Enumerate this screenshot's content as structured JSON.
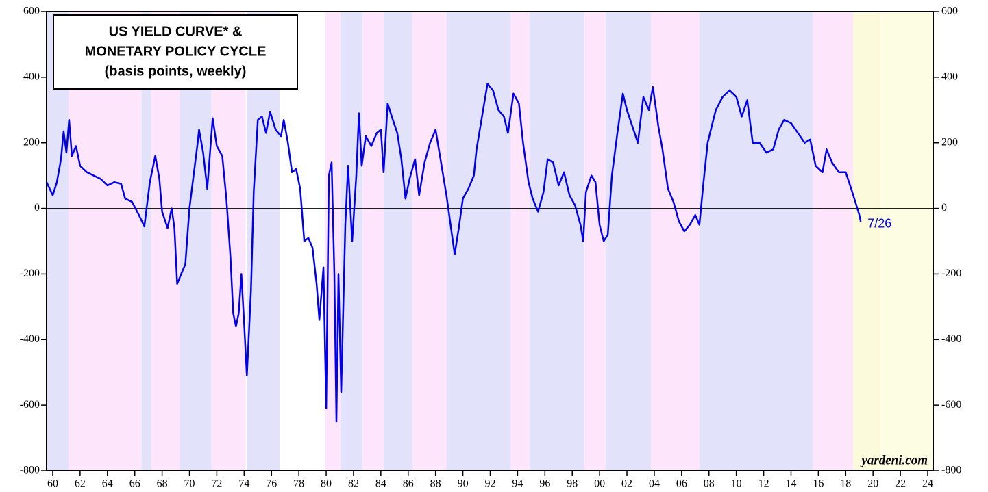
{
  "chart_data": {
    "type": "line",
    "title": [
      "US YIELD CURVE* &",
      "MONETARY POLICY CYCLE",
      "(basis points, weekly)"
    ],
    "annotation": "7/26",
    "source": "yardeni.com",
    "xlim": [
      1959.55,
      2024.4
    ],
    "ylim": [
      -800,
      600
    ],
    "yticks": [
      -800,
      -600,
      -400,
      -200,
      0,
      200,
      400,
      600
    ],
    "xticks": [
      {
        "value": 1960,
        "label": "60"
      },
      {
        "value": 1962,
        "label": "62"
      },
      {
        "value": 1964,
        "label": "64"
      },
      {
        "value": 1966,
        "label": "66"
      },
      {
        "value": 1968,
        "label": "68"
      },
      {
        "value": 1970,
        "label": "70"
      },
      {
        "value": 1972,
        "label": "72"
      },
      {
        "value": 1974,
        "label": "74"
      },
      {
        "value": 1976,
        "label": "76"
      },
      {
        "value": 1978,
        "label": "78"
      },
      {
        "value": 1980,
        "label": "80"
      },
      {
        "value": 1982,
        "label": "82"
      },
      {
        "value": 1984,
        "label": "84"
      },
      {
        "value": 1986,
        "label": "86"
      },
      {
        "value": 1988,
        "label": "88"
      },
      {
        "value": 1990,
        "label": "90"
      },
      {
        "value": 1992,
        "label": "92"
      },
      {
        "value": 1994,
        "label": "94"
      },
      {
        "value": 1996,
        "label": "96"
      },
      {
        "value": 1998,
        "label": "98"
      },
      {
        "value": 2000,
        "label": "00"
      },
      {
        "value": 2002,
        "label": "02"
      },
      {
        "value": 2004,
        "label": "04"
      },
      {
        "value": 2006,
        "label": "06"
      },
      {
        "value": 2008,
        "label": "08"
      },
      {
        "value": 2010,
        "label": "10"
      },
      {
        "value": 2012,
        "label": "12"
      },
      {
        "value": 2014,
        "label": "14"
      },
      {
        "value": 2016,
        "label": "16"
      },
      {
        "value": 2018,
        "label": "18"
      },
      {
        "value": 2020,
        "label": "20"
      },
      {
        "value": 2022,
        "label": "22"
      },
      {
        "value": 2024,
        "label": "24"
      }
    ],
    "bands": [
      {
        "start": 1959.55,
        "end": 1961.15,
        "color": "#e2e2fb"
      },
      {
        "start": 1961.15,
        "end": 1966.5,
        "color": "#fde6fb"
      },
      {
        "start": 1966.5,
        "end": 1967.2,
        "color": "#e2e2fb"
      },
      {
        "start": 1967.2,
        "end": 1969.3,
        "color": "#fde6fb"
      },
      {
        "start": 1969.3,
        "end": 1971.6,
        "color": "#e2e2fb"
      },
      {
        "start": 1971.6,
        "end": 1974.1,
        "color": "#fde6fb"
      },
      {
        "start": 1974.2,
        "end": 1976.6,
        "color": "#e2e2fb"
      },
      {
        "start": 1979.9,
        "end": 1981.05,
        "color": "#fde6fb"
      },
      {
        "start": 1981.05,
        "end": 1982.65,
        "color": "#e2e2fb"
      },
      {
        "start": 1982.65,
        "end": 1984.2,
        "color": "#fde6fb"
      },
      {
        "start": 1984.2,
        "end": 1986.3,
        "color": "#e2e2fb"
      },
      {
        "start": 1986.3,
        "end": 1988.8,
        "color": "#fde6fb"
      },
      {
        "start": 1988.8,
        "end": 1993.5,
        "color": "#e2e2fb"
      },
      {
        "start": 1993.5,
        "end": 1994.9,
        "color": "#fde6fb"
      },
      {
        "start": 1994.9,
        "end": 1998.9,
        "color": "#e2e2fb"
      },
      {
        "start": 1998.9,
        "end": 2000.45,
        "color": "#fde6fb"
      },
      {
        "start": 2000.45,
        "end": 2003.75,
        "color": "#e2e2fb"
      },
      {
        "start": 2003.75,
        "end": 2007.3,
        "color": "#fde6fb"
      },
      {
        "start": 2007.3,
        "end": 2015.6,
        "color": "#e2e2fb"
      },
      {
        "start": 2015.6,
        "end": 2018.55,
        "color": "#fde6fb"
      },
      {
        "start": 2018.55,
        "end": 2020.55,
        "color": "#fbfbdc"
      },
      {
        "start": 2020.55,
        "end": 2024.4,
        "color": "#fdfde3"
      }
    ],
    "x": [
      1959.55,
      1960.0,
      1960.3,
      1960.6,
      1960.8,
      1961.0,
      1961.2,
      1961.4,
      1961.7,
      1962.0,
      1962.5,
      1963,
      1963.5,
      1964,
      1964.5,
      1965,
      1965.3,
      1965.8,
      1966.3,
      1966.7,
      1967.1,
      1967.5,
      1967.8,
      1968.0,
      1968.4,
      1968.7,
      1968.9,
      1969.1,
      1969.4,
      1969.7,
      1970.0,
      1970.3,
      1970.6,
      1970.7,
      1971.0,
      1971.3,
      1971.7,
      1972.0,
      1972.4,
      1972.7,
      1973.0,
      1973.2,
      1973.4,
      1973.6,
      1973.8,
      1974.0,
      1974.2,
      1974.5,
      1974.7,
      1975.0,
      1975.3,
      1975.6,
      1975.9,
      1976.3,
      1976.7,
      1976.9,
      1977.2,
      1977.5,
      1977.8,
      1978.1,
      1978.4,
      1978.7,
      1979.0,
      1979.3,
      1979.5,
      1979.8,
      1980.0,
      1980.2,
      1980.4,
      1980.6,
      1980.75,
      1980.9,
      1981.1,
      1981.4,
      1981.6,
      1981.9,
      1982.2,
      1982.4,
      1982.6,
      1982.9,
      1983.3,
      1983.7,
      1984.0,
      1984.2,
      1984.5,
      1984.8,
      1985.2,
      1985.5,
      1985.8,
      1986.1,
      1986.5,
      1986.8,
      1987.2,
      1987.6,
      1988.0,
      1988.4,
      1988.8,
      1989.1,
      1989.4,
      1989.7,
      1990.0,
      1990.4,
      1990.8,
      1991.0,
      1991.4,
      1991.8,
      1992.2,
      1992.6,
      1993.0,
      1993.3,
      1993.7,
      1994.1,
      1994.4,
      1994.8,
      1995.1,
      1995.5,
      1995.9,
      1996.2,
      1996.6,
      1997.0,
      1997.4,
      1997.8,
      1998.2,
      1998.6,
      1998.8,
      1999.0,
      1999.4,
      1999.7,
      2000.0,
      2000.3,
      2000.6,
      2000.9,
      2001.3,
      2001.7,
      2002.0,
      2002.4,
      2002.8,
      2003.2,
      2003.6,
      2003.9,
      2004.3,
      2004.6,
      2005.0,
      2005.4,
      2005.8,
      2006.2,
      2006.6,
      2007.0,
      2007.3,
      2007.6,
      2007.9,
      2008.2,
      2008.5,
      2009.0,
      2009.5,
      2010.0,
      2010.4,
      2010.8,
      2011.2,
      2011.7,
      2012.2,
      2012.7,
      2013.1,
      2013.5,
      2014.0,
      2014.5,
      2015.0,
      2015.4,
      2015.8,
      2016.3,
      2016.6,
      2017.0,
      2017.5,
      2018.0,
      2018.4,
      2018.7,
      2019.0,
      2019.1
    ],
    "series": [
      {
        "color": "#0000ee",
        "values": [
          80,
          40,
          80,
          150,
          235,
          170,
          270,
          160,
          190,
          130,
          110,
          100,
          90,
          70,
          80,
          75,
          30,
          20,
          -20,
          -55,
          80,
          160,
          90,
          -10,
          -60,
          0,
          -60,
          -230,
          -200,
          -170,
          0,
          100,
          200,
          240,
          170,
          60,
          275,
          190,
          160,
          30,
          -150,
          -320,
          -360,
          -320,
          -200,
          -350,
          -510,
          -250,
          50,
          270,
          280,
          230,
          295,
          240,
          220,
          270,
          200,
          110,
          120,
          60,
          -100,
          -90,
          -120,
          -230,
          -340,
          -180,
          -610,
          100,
          140,
          -200,
          -650,
          -200,
          -560,
          -50,
          130,
          -100,
          100,
          290,
          130,
          220,
          190,
          230,
          240,
          110,
          320,
          280,
          230,
          150,
          30,
          90,
          150,
          40,
          140,
          200,
          240,
          140,
          40,
          -50,
          -140,
          -60,
          30,
          60,
          100,
          180,
          280,
          380,
          360,
          300,
          280,
          230,
          350,
          320,
          200,
          80,
          30,
          -10,
          50,
          150,
          140,
          70,
          110,
          40,
          10,
          -50,
          -100,
          50,
          100,
          80,
          -50,
          -100,
          -80,
          100,
          230,
          350,
          300,
          250,
          200,
          340,
          300,
          370,
          250,
          180,
          60,
          20,
          -40,
          -70,
          -50,
          -20,
          -50,
          80,
          200,
          250,
          300,
          340,
          360,
          340,
          280,
          330,
          200,
          200,
          170,
          180,
          240,
          270,
          260,
          230,
          200,
          210,
          130,
          110,
          180,
          140,
          110,
          110,
          60,
          20,
          -20,
          -40
        ]
      }
    ]
  }
}
